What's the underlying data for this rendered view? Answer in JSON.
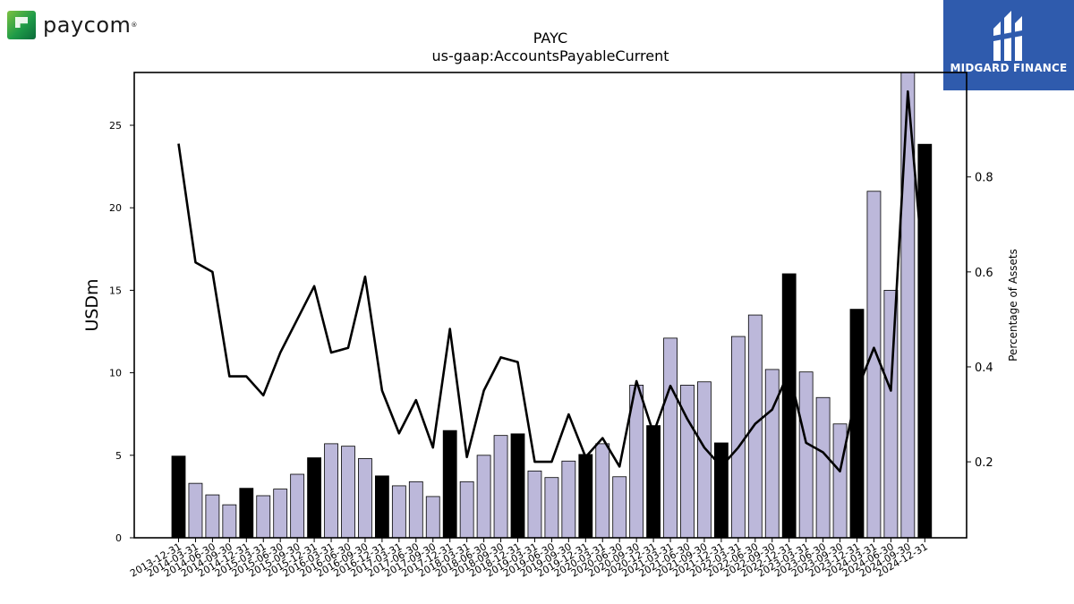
{
  "branding": {
    "left_logo_word": "paycom",
    "left_logo_mark": "®",
    "right_logo_text": "MIDGARD FINANCE"
  },
  "chart_data": {
    "type": "bar",
    "title": "PAYC",
    "subtitle": "us-gaap:AccountsPayableCurrent",
    "ylabel": "USDm",
    "y2label": "Percentage of Assets",
    "ylim": [
      0,
      28.2
    ],
    "y2lim": [
      0.04,
      1.02
    ],
    "yticks": [
      0,
      5,
      10,
      15,
      20,
      25
    ],
    "y2ticks": [
      0.2,
      0.4,
      0.6,
      0.8
    ],
    "categories": [
      "2013-12-31",
      "2014-03-31",
      "2014-06-30",
      "2014-09-30",
      "2014-12-31",
      "2015-03-31",
      "2015-06-30",
      "2015-09-30",
      "2015-12-31",
      "2016-03-31",
      "2016-06-30",
      "2016-09-30",
      "2016-12-31",
      "2017-03-31",
      "2017-06-30",
      "2017-09-30",
      "2017-12-31",
      "2018-03-31",
      "2018-06-30",
      "2018-09-30",
      "2018-12-31",
      "2019-03-31",
      "2019-06-30",
      "2019-09-30",
      "2019-12-31",
      "2020-03-31",
      "2020-06-30",
      "2020-09-30",
      "2020-12-31",
      "2021-03-31",
      "2021-06-30",
      "2021-09-30",
      "2021-12-31",
      "2022-03-31",
      "2022-06-30",
      "2022-09-30",
      "2022-12-31",
      "2023-03-31",
      "2023-06-30",
      "2023-09-30",
      "2023-12-31",
      "2024-03-31",
      "2024-06-30",
      "2024-09-30",
      "2024-12-31"
    ],
    "series": [
      {
        "values": [
          4.95,
          3.3,
          2.6,
          2.0,
          3.0,
          2.55,
          2.95,
          3.85,
          4.85,
          5.7,
          5.55,
          4.8,
          3.75,
          3.15,
          3.4,
          2.5,
          6.5,
          3.4,
          5.0,
          6.2,
          6.3,
          4.05,
          3.65,
          4.65,
          5.05,
          5.7,
          3.7,
          9.25,
          6.8,
          12.1,
          9.25,
          9.45,
          5.75,
          12.2,
          13.5,
          10.2,
          16.0,
          10.05,
          8.5,
          6.9,
          13.85,
          21.0,
          15.0,
          28.5,
          23.85
        ],
        "color": "#bcb8da",
        "highlight_color": "#000000",
        "highlight_every": "fiscal year end (12-31)"
      },
      {
        "type": "line",
        "axis": "right",
        "color": "#000000",
        "values": [
          0.87,
          0.62,
          0.6,
          0.38,
          0.38,
          0.34,
          0.43,
          0.5,
          0.57,
          0.43,
          0.44,
          0.59,
          0.35,
          0.26,
          0.33,
          0.23,
          0.48,
          0.21,
          0.35,
          0.42,
          0.41,
          0.2,
          0.2,
          0.3,
          0.21,
          0.25,
          0.19,
          0.37,
          0.26,
          0.36,
          0.29,
          0.23,
          0.19,
          0.23,
          0.28,
          0.31,
          0.39,
          0.24,
          0.22,
          0.18,
          0.35,
          0.44,
          0.35,
          0.98,
          0.57
        ]
      }
    ],
    "grid": false,
    "legend": "none"
  }
}
